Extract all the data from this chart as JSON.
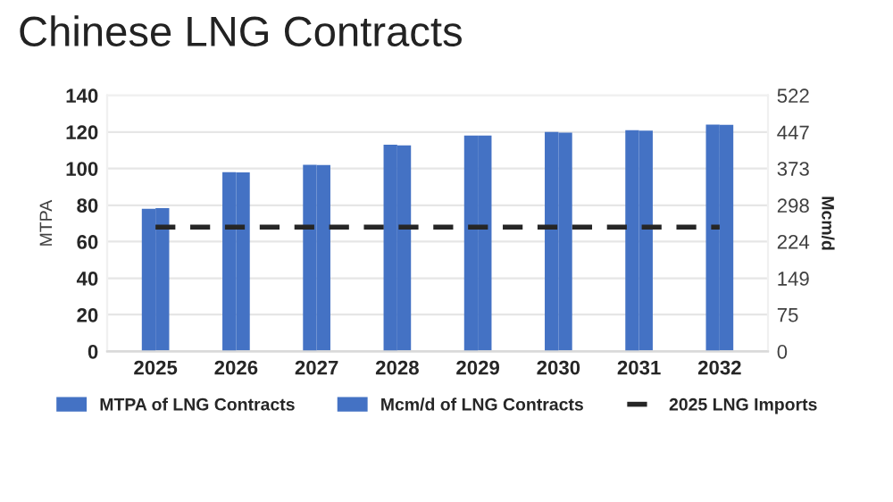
{
  "chart_data": {
    "type": "bar",
    "title": "Chinese LNG Contracts",
    "ylabel": "MTPA",
    "y2label": "Mcm/d",
    "categories": [
      "2025",
      "2026",
      "2027",
      "2028",
      "2029",
      "2030",
      "2031",
      "2032"
    ],
    "series": [
      {
        "name": "MTPA of LNG Contracts",
        "color": "#4472c4",
        "values": [
          78,
          98,
          102,
          113,
          118,
          120,
          121,
          124
        ]
      },
      {
        "name": "Mcm/d of LNG Contracts",
        "color": "#4472c4",
        "axis": "y2",
        "values": [
          292,
          365,
          380,
          420,
          440,
          446,
          450,
          462
        ]
      }
    ],
    "ref_lines": [
      {
        "axis": "y",
        "value": 68,
        "label": "2025 LNG Imports",
        "color": "#262626",
        "line_style": "dashed"
      }
    ],
    "ylim": [
      0,
      140
    ],
    "yticks": [
      0,
      20,
      40,
      60,
      80,
      100,
      120,
      140
    ],
    "y2lim": [
      0,
      522
    ],
    "y2ticks": [
      0,
      75,
      149,
      224,
      298,
      373,
      447,
      522
    ],
    "grid": "y",
    "legend": "bottom"
  }
}
